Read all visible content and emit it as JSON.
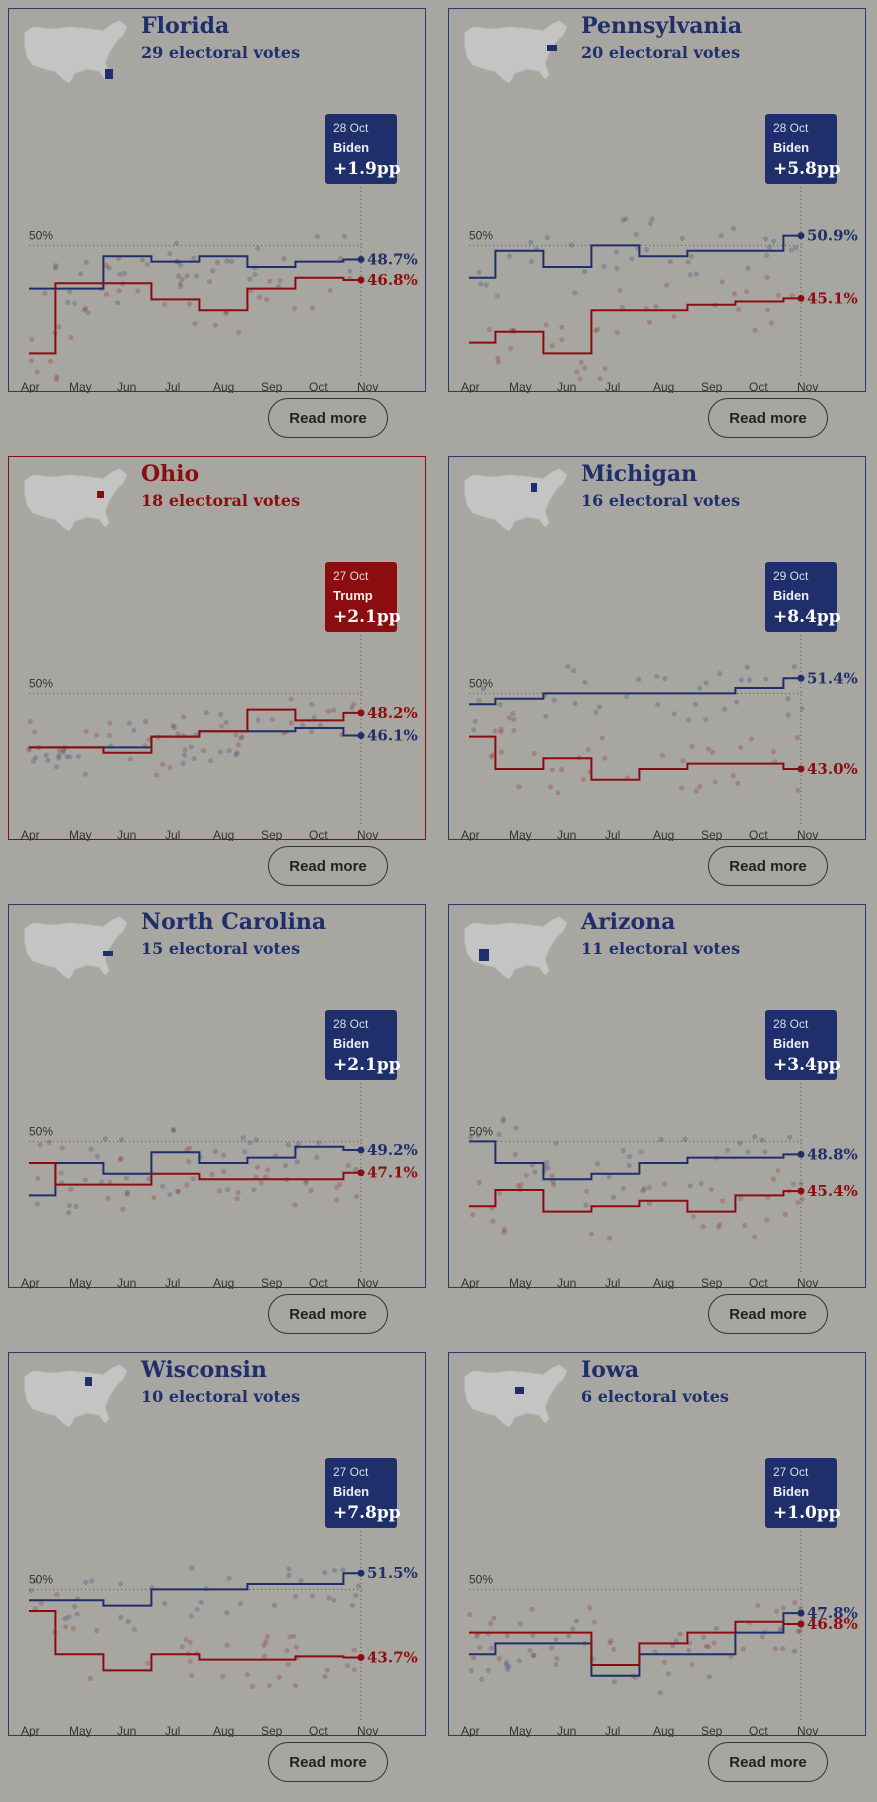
{
  "colors": {
    "biden": "#1f2f6b",
    "trump": "#8b0d10",
    "background": "#a7a6a1",
    "map": "#c4c4c4"
  },
  "months": [
    "Apr",
    "May",
    "Jun",
    "Jul",
    "Aug",
    "Sep",
    "Oct",
    "Nov"
  ],
  "read_more_label": "Read more",
  "fifty_label": "50%",
  "states": [
    {
      "name": "Florida",
      "electoral": "29 electoral votes",
      "leader": "biden",
      "box_date": "28 Oct",
      "box_candidate": "Biden",
      "box_margin": "+1.9pp",
      "biden_label": "48.7%",
      "trump_label": "46.8%"
    },
    {
      "name": "Pennsylvania",
      "electoral": "20 electoral votes",
      "leader": "biden",
      "box_date": "28 Oct",
      "box_candidate": "Biden",
      "box_margin": "+5.8pp",
      "biden_label": "50.9%",
      "trump_label": "45.1%"
    },
    {
      "name": "Ohio",
      "electoral": "18 electoral votes",
      "leader": "trump",
      "box_date": "27 Oct",
      "box_candidate": "Trump",
      "box_margin": "+2.1pp",
      "biden_label": "46.1%",
      "trump_label": "48.2%"
    },
    {
      "name": "Michigan",
      "electoral": "16 electoral votes",
      "leader": "biden",
      "box_date": "29 Oct",
      "box_candidate": "Biden",
      "box_margin": "+8.4pp",
      "biden_label": "51.4%",
      "trump_label": "43.0%"
    },
    {
      "name": "North Carolina",
      "electoral": "15 electoral votes",
      "leader": "biden",
      "box_date": "28 Oct",
      "box_candidate": "Biden",
      "box_margin": "+2.1pp",
      "biden_label": "49.2%",
      "trump_label": "47.1%"
    },
    {
      "name": "Arizona",
      "electoral": "11 electoral votes",
      "leader": "biden",
      "box_date": "28 Oct",
      "box_candidate": "Biden",
      "box_margin": "+3.4pp",
      "biden_label": "48.8%",
      "trump_label": "45.4%"
    },
    {
      "name": "Wisconsin",
      "electoral": "10 electoral votes",
      "leader": "biden",
      "box_date": "27 Oct",
      "box_candidate": "Biden",
      "box_margin": "+7.8pp",
      "biden_label": "51.5%",
      "trump_label": "43.7%"
    },
    {
      "name": "Iowa",
      "electoral": "6 electoral votes",
      "leader": "biden",
      "box_date": "27 Oct",
      "box_candidate": "Biden",
      "box_margin": "+1.0pp",
      "biden_label": "47.8%",
      "trump_label": "46.8%"
    }
  ],
  "chart_data": [
    {
      "type": "line",
      "x": [
        "Apr",
        "May",
        "Jun",
        "Jul",
        "Aug",
        "Sep",
        "Oct",
        "Nov"
      ],
      "ylim": [
        38,
        58
      ],
      "reference": 50,
      "series": [
        {
          "values": [
            46,
            46,
            49,
            48.5,
            49,
            48,
            48.5,
            48.7
          ]
        },
        {
          "values": [
            40,
            46.5,
            46.5,
            45,
            44,
            46,
            47,
            46.8
          ]
        }
      ]
    },
    {
      "type": "line",
      "x": [
        "Apr",
        "May",
        "Jun",
        "Jul",
        "Aug",
        "Sep",
        "Oct",
        "Nov"
      ],
      "ylim": [
        38,
        58
      ],
      "reference": 50,
      "series": [
        {
          "values": [
            47,
            49.5,
            48,
            50,
            49,
            49.5,
            49.5,
            50.9
          ]
        },
        {
          "values": [
            41,
            42,
            40,
            44,
            44,
            44.5,
            44.8,
            45.1
          ]
        }
      ]
    },
    {
      "type": "line",
      "x": [
        "Apr",
        "May",
        "Jun",
        "Jul",
        "Aug",
        "Sep",
        "Oct",
        "Nov"
      ],
      "ylim": [
        38,
        58
      ],
      "reference": 50,
      "series": [
        {
          "values": [
            45,
            45,
            45,
            46,
            46.5,
            46.5,
            46.8,
            46.1
          ]
        },
        {
          "values": [
            45,
            45,
            44.5,
            46,
            46.5,
            48.5,
            47.5,
            48.2
          ]
        }
      ]
    },
    {
      "type": "line",
      "x": [
        "Apr",
        "May",
        "Jun",
        "Jul",
        "Aug",
        "Sep",
        "Oct",
        "Nov"
      ],
      "ylim": [
        38,
        58
      ],
      "reference": 50,
      "series": [
        {
          "values": [
            49,
            49.5,
            50,
            50,
            50,
            50,
            50.5,
            51.4
          ]
        },
        {
          "values": [
            46,
            43,
            44,
            42,
            43,
            43.5,
            43.5,
            43.0
          ]
        }
      ]
    },
    {
      "type": "line",
      "x": [
        "Apr",
        "May",
        "Jun",
        "Jul",
        "Aug",
        "Sep",
        "Oct",
        "Nov"
      ],
      "ylim": [
        38,
        58
      ],
      "reference": 50,
      "series": [
        {
          "values": [
            45,
            48,
            47,
            49,
            48,
            48.5,
            49.5,
            49.2
          ]
        },
        {
          "values": [
            48,
            46,
            46,
            47,
            46.5,
            46.5,
            46.5,
            47.1
          ]
        }
      ]
    },
    {
      "type": "line",
      "x": [
        "Apr",
        "May",
        "Jun",
        "Jul",
        "Aug",
        "Sep",
        "Oct",
        "Nov"
      ],
      "ylim": [
        38,
        58
      ],
      "reference": 50,
      "series": [
        {
          "values": [
            50,
            48,
            46.5,
            47,
            48,
            48.5,
            48.5,
            48.8
          ]
        },
        {
          "values": [
            44,
            45.5,
            43.5,
            44,
            44.5,
            43.5,
            45,
            45.4
          ]
        }
      ]
    },
    {
      "type": "line",
      "x": [
        "Apr",
        "May",
        "Jun",
        "Jul",
        "Aug",
        "Sep",
        "Oct",
        "Nov"
      ],
      "ylim": [
        38,
        58
      ],
      "reference": 50,
      "series": [
        {
          "values": [
            49,
            49,
            48.5,
            50,
            50,
            50.5,
            50.5,
            51.5
          ]
        },
        {
          "values": [
            48,
            44,
            42.5,
            44,
            43.5,
            43.5,
            43.8,
            43.7
          ]
        }
      ]
    },
    {
      "type": "line",
      "x": [
        "Apr",
        "May",
        "Jun",
        "Jul",
        "Aug",
        "Sep",
        "Oct",
        "Nov"
      ],
      "ylim": [
        38,
        58
      ],
      "reference": 50,
      "series": [
        {
          "values": [
            44,
            45,
            45,
            42,
            44,
            44,
            46,
            47.8
          ]
        },
        {
          "values": [
            46,
            46,
            46,
            43,
            45,
            46,
            47,
            46.8
          ]
        }
      ]
    }
  ]
}
